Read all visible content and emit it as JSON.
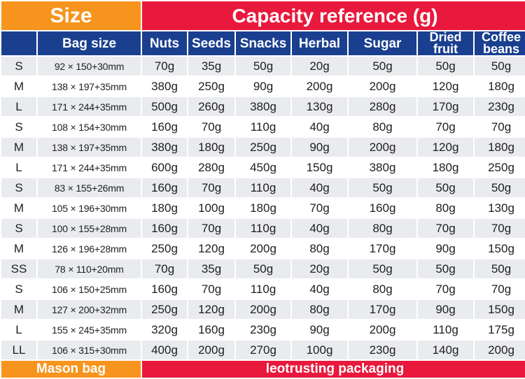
{
  "banner": {
    "size_title": "Size",
    "capacity_title": "Capacity reference (g)"
  },
  "columns": {
    "size": "",
    "bag_size": "Bag size",
    "nuts": "Nuts",
    "seeds": "Seeds",
    "snacks": "Snacks",
    "herbal": "Herbal",
    "sugar": "Sugar",
    "dried_fruit": "Dried fruit",
    "coffee_beans": "Coffee beans"
  },
  "rows": [
    [
      "S",
      "92 × 150+30mm",
      "70g",
      "35g",
      "50g",
      "20g",
      "50g",
      "50g",
      "50g"
    ],
    [
      "M",
      "138 × 197+35mm",
      "380g",
      "250g",
      "90g",
      "200g",
      "200g",
      "120g",
      "180g"
    ],
    [
      "L",
      "171 × 244+35mm",
      "500g",
      "260g",
      "380g",
      "130g",
      "280g",
      "170g",
      "230g"
    ],
    [
      "S",
      "108 × 154+30mm",
      "160g",
      "70g",
      "110g",
      "40g",
      "80g",
      "70g",
      "70g"
    ],
    [
      "M",
      "138 × 197+35mm",
      "380g",
      "180g",
      "250g",
      "90g",
      "200g",
      "120g",
      "180g"
    ],
    [
      "L",
      "171 × 244+35mm",
      "600g",
      "280g",
      "450g",
      "150g",
      "380g",
      "180g",
      "250g"
    ],
    [
      "S",
      "83 × 155+26mm",
      "160g",
      "70g",
      "110g",
      "40g",
      "50g",
      "50g",
      "50g"
    ],
    [
      "M",
      "105 × 196+30mm",
      "180g",
      "100g",
      "180g",
      "70g",
      "160g",
      "80g",
      "130g"
    ],
    [
      "S",
      "100 × 155+28mm",
      "160g",
      "70g",
      "110g",
      "40g",
      "80g",
      "70g",
      "70g"
    ],
    [
      "M",
      "126 × 196+28mm",
      "250g",
      "120g",
      "200g",
      "80g",
      "170g",
      "90g",
      "150g"
    ],
    [
      "SS",
      "78 × 110+20mm",
      "70g",
      "35g",
      "50g",
      "20g",
      "50g",
      "50g",
      "50g"
    ],
    [
      "S",
      "106 × 150+25mm",
      "160g",
      "70g",
      "110g",
      "40g",
      "80g",
      "70g",
      "70g"
    ],
    [
      "M",
      "127 × 200+32mm",
      "250g",
      "120g",
      "200g",
      "80g",
      "170g",
      "90g",
      "150g"
    ],
    [
      "L",
      "155 × 245+35mm",
      "320g",
      "160g",
      "230g",
      "90g",
      "200g",
      "110g",
      "175g"
    ],
    [
      "LL",
      "106 × 315+30mm",
      "400g",
      "200g",
      "270g",
      "100g",
      "230g",
      "140g",
      "200g"
    ]
  ],
  "footer": {
    "left": "Mason bag",
    "right": "leotrusting packaging"
  },
  "colors": {
    "orange": "#f7941d",
    "red": "#e8193c",
    "navy": "#1a3f8f",
    "stripe": "#e9ebef"
  }
}
